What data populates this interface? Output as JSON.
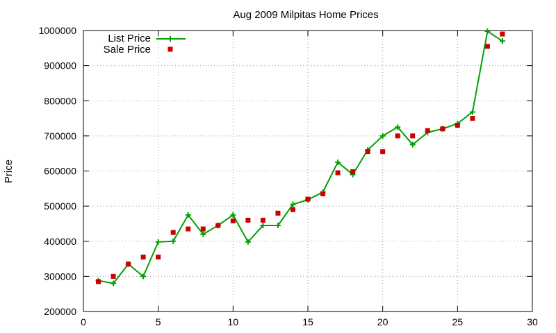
{
  "chart_data": {
    "type": "line",
    "title": "Aug 2009 Milpitas Home Prices",
    "xlabel": "",
    "ylabel": "Price",
    "xlim": [
      0,
      30
    ],
    "ylim": [
      200000,
      1000000
    ],
    "x_ticks": [
      0,
      5,
      10,
      15,
      20,
      25,
      30
    ],
    "y_ticks": [
      200000,
      300000,
      400000,
      500000,
      600000,
      700000,
      800000,
      900000,
      1000000
    ],
    "grid": true,
    "legend_position": "top-left",
    "series": [
      {
        "name": "List Price",
        "style": "line-points",
        "color": "#00a000",
        "x": [
          1,
          2,
          3,
          4,
          5,
          6,
          7,
          8,
          9,
          10,
          11,
          12,
          13,
          14,
          15,
          16,
          17,
          18,
          19,
          20,
          21,
          22,
          23,
          24,
          25,
          26,
          27,
          28
        ],
        "values": [
          288000,
          280000,
          335000,
          300000,
          398000,
          400000,
          475000,
          420000,
          445000,
          475000,
          398000,
          445000,
          445000,
          505000,
          518000,
          540000,
          625000,
          590000,
          660000,
          700000,
          725000,
          675000,
          710000,
          720000,
          735000,
          768000,
          998000,
          970000
        ]
      },
      {
        "name": "Sale Price",
        "style": "points",
        "color": "#cc0000",
        "x": [
          1,
          2,
          3,
          4,
          5,
          6,
          7,
          8,
          9,
          10,
          11,
          12,
          13,
          14,
          15,
          16,
          17,
          18,
          19,
          20,
          21,
          22,
          23,
          24,
          25,
          26,
          27,
          28
        ],
        "values": [
          285000,
          300000,
          335000,
          355000,
          355000,
          425000,
          435000,
          435000,
          445000,
          458000,
          460000,
          460000,
          480000,
          490000,
          520000,
          535000,
          595000,
          598000,
          655000,
          655000,
          700000,
          700000,
          715000,
          720000,
          730000,
          750000,
          955000,
          990000
        ]
      }
    ]
  }
}
